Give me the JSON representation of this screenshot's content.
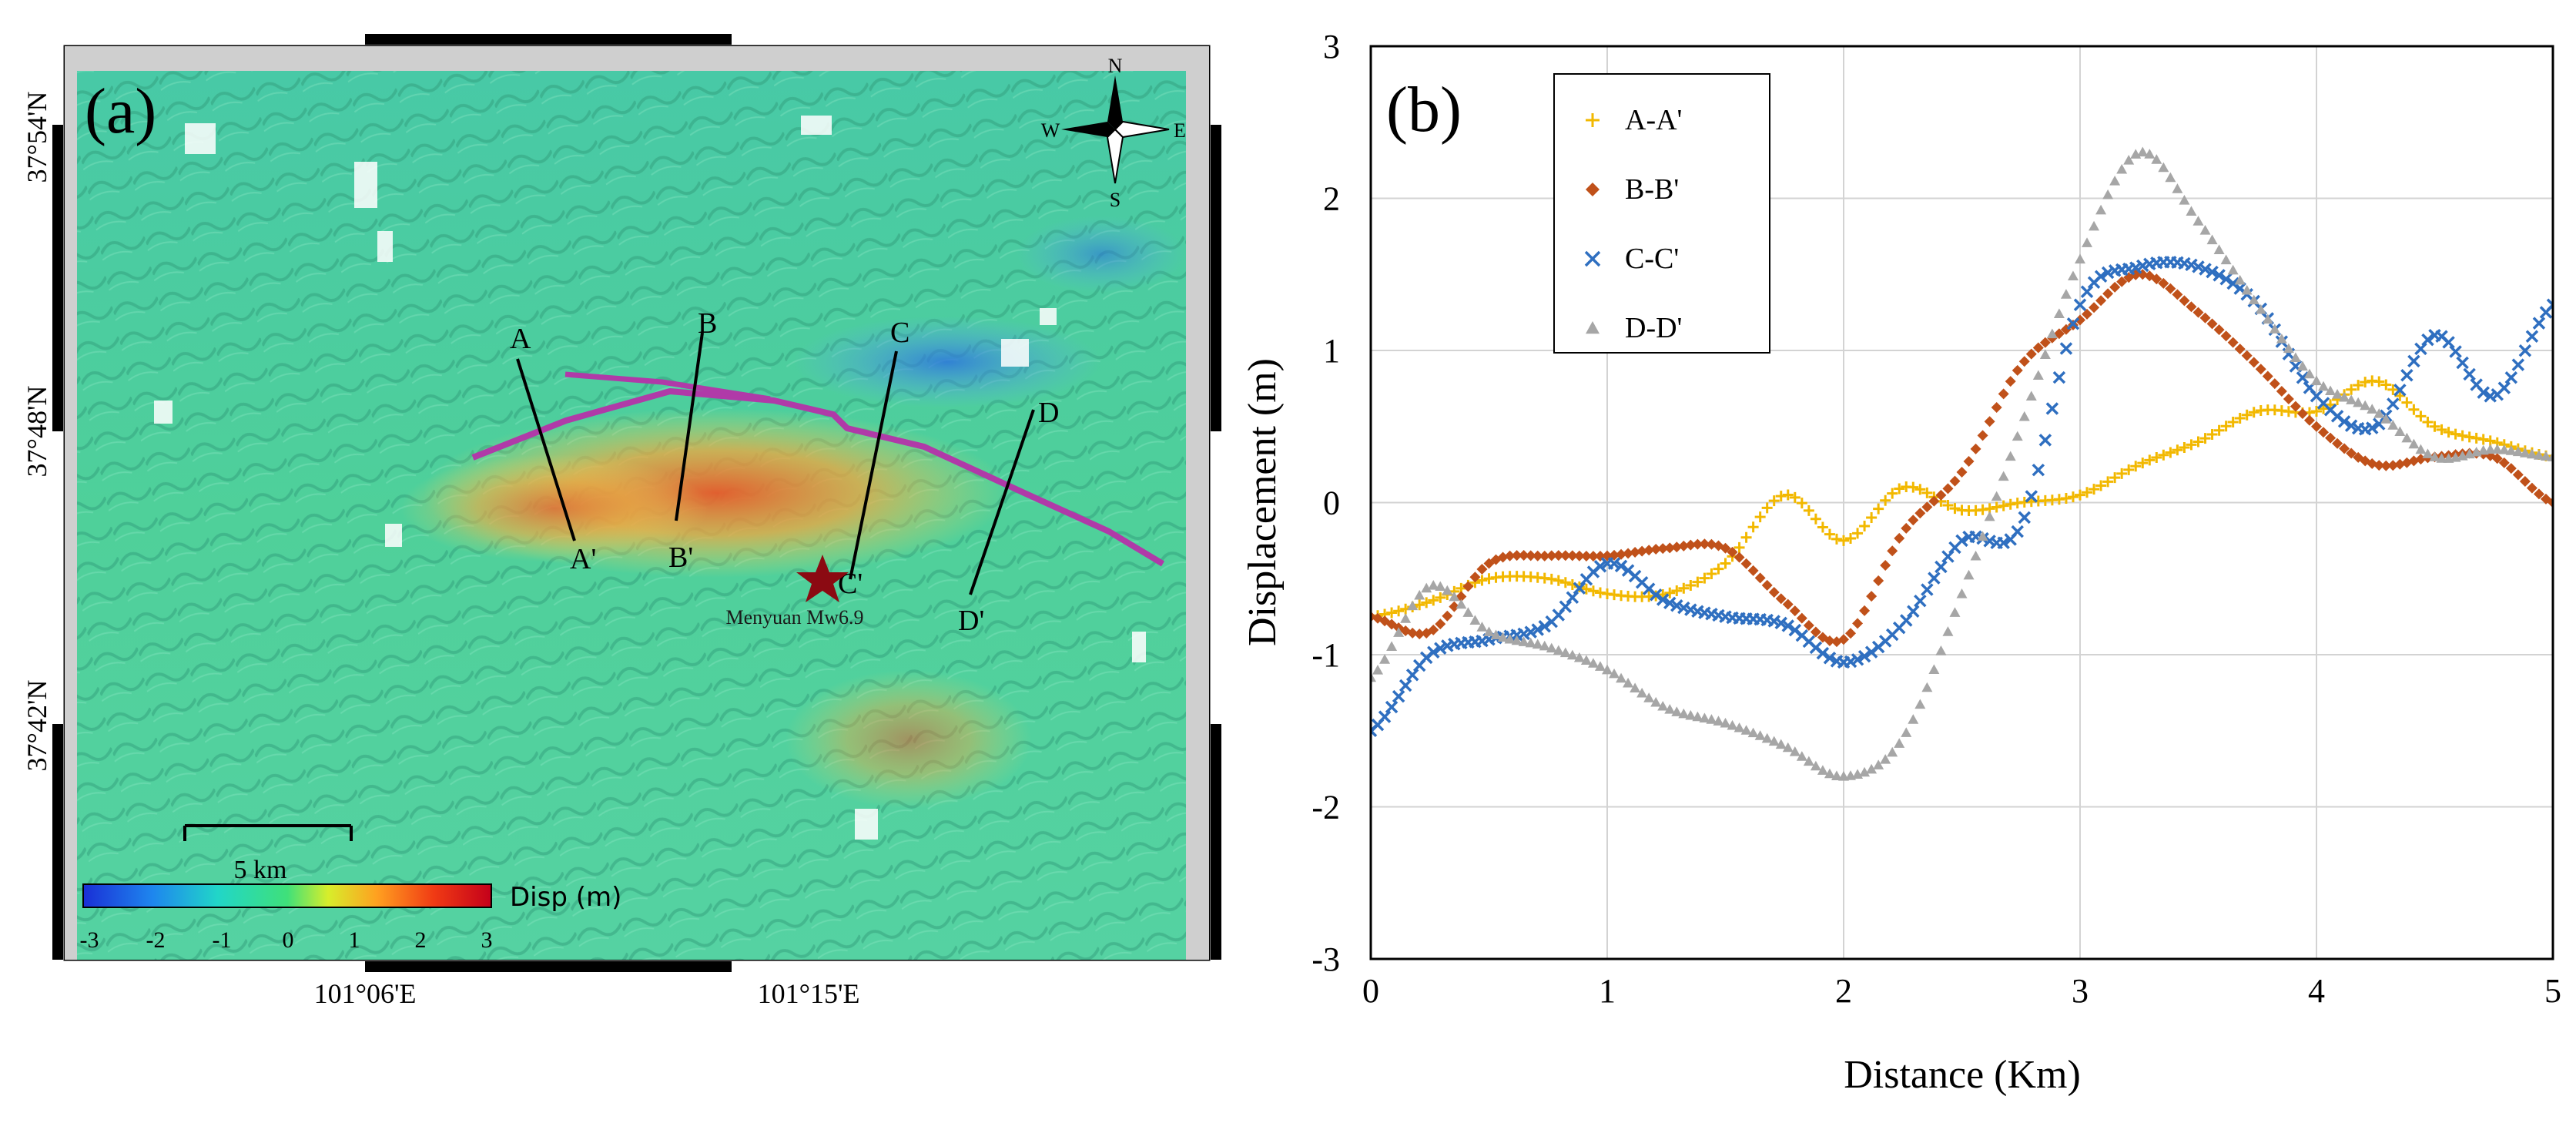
{
  "panel_a": {
    "label": "(a)",
    "lat_ticks": [
      "37°54'N",
      "37°48'N",
      "37°42'N"
    ],
    "lon_ticks": [
      "101°06'E",
      "101°15'E"
    ],
    "compass": {
      "n": "N",
      "s": "S",
      "e": "E",
      "w": "W"
    },
    "scale_bar": "5 km",
    "colorbar": {
      "title": "Disp (m)",
      "ticks": [
        "-3",
        "-2",
        "-1",
        "0",
        "1",
        "2",
        "3"
      ]
    },
    "profiles": [
      {
        "start": "A",
        "end": "A'"
      },
      {
        "start": "B",
        "end": "B'"
      },
      {
        "start": "C",
        "end": "C'"
      },
      {
        "start": "D",
        "end": "D'"
      }
    ],
    "epicenter_label": "Menyuan Mw6.9"
  },
  "chart_data": {
    "type": "scatter",
    "panel_label": "(b)",
    "title": "",
    "xlabel": "Distance (Km)",
    "ylabel": "Displacement (m)",
    "xlim": [
      0,
      5
    ],
    "ylim": [
      -3,
      3
    ],
    "xticks": [
      "0",
      "1",
      "2",
      "3",
      "4",
      "5"
    ],
    "yticks": [
      "3",
      "2",
      "1",
      "0",
      "-1",
      "-2",
      "-3"
    ],
    "grid": true,
    "legend_position": "top-left",
    "series": [
      {
        "name": "A-A'",
        "marker": "plus",
        "color": "#f2b800",
        "x": [
          0,
          0.25,
          0.5,
          0.75,
          1.0,
          1.25,
          1.5,
          1.75,
          2.0,
          2.25,
          2.5,
          2.75,
          3.0,
          3.25,
          3.5,
          3.75,
          4.0,
          4.25,
          4.5,
          4.75,
          5.0
        ],
        "y": [
          -0.75,
          -0.65,
          -0.5,
          -0.5,
          -0.6,
          -0.6,
          -0.4,
          0.05,
          -0.25,
          0.1,
          -0.05,
          0.0,
          0.05,
          0.25,
          0.4,
          0.6,
          0.6,
          0.8,
          0.5,
          0.4,
          0.3
        ]
      },
      {
        "name": "B-B'",
        "marker": "diamond",
        "color": "#c0511a",
        "x": [
          0,
          0.25,
          0.5,
          0.75,
          1.0,
          1.25,
          1.5,
          1.75,
          2.0,
          2.25,
          2.5,
          2.75,
          3.0,
          3.25,
          3.5,
          3.75,
          4.0,
          4.25,
          4.5,
          4.75,
          5.0
        ],
        "y": [
          -0.75,
          -0.85,
          -0.4,
          -0.35,
          -0.35,
          -0.3,
          -0.3,
          -0.65,
          -0.9,
          -0.2,
          0.2,
          0.9,
          1.2,
          1.5,
          1.25,
          0.9,
          0.5,
          0.25,
          0.3,
          0.3,
          0.0
        ]
      },
      {
        "name": "C-C'",
        "marker": "cross",
        "color": "#2f6fc0",
        "x": [
          0,
          0.25,
          0.5,
          0.75,
          1.0,
          1.25,
          1.5,
          1.75,
          2.0,
          2.25,
          2.5,
          2.75,
          3.0,
          3.25,
          3.5,
          3.75,
          4.0,
          4.25,
          4.5,
          4.75,
          5.0
        ],
        "y": [
          -1.5,
          -1.0,
          -0.9,
          -0.8,
          -0.4,
          -0.65,
          -0.75,
          -0.8,
          -1.05,
          -0.8,
          -0.25,
          -0.15,
          1.3,
          1.55,
          1.55,
          1.3,
          0.7,
          0.5,
          1.1,
          0.7,
          1.3
        ]
      },
      {
        "name": "D-D'",
        "marker": "triangle",
        "color": "#a6a6a6",
        "x": [
          0,
          0.25,
          0.5,
          0.75,
          1.0,
          1.25,
          1.5,
          1.75,
          2.0,
          2.25,
          2.5,
          2.75,
          3.0,
          3.25,
          3.5,
          3.75,
          4.0,
          4.25,
          4.5,
          4.75,
          5.0
        ],
        "y": [
          -1.15,
          -0.55,
          -0.85,
          -0.95,
          -1.1,
          -1.35,
          -1.45,
          -1.6,
          -1.8,
          -1.55,
          -0.6,
          0.5,
          1.6,
          2.3,
          1.85,
          1.3,
          0.8,
          0.6,
          0.3,
          0.35,
          0.3
        ]
      }
    ]
  }
}
